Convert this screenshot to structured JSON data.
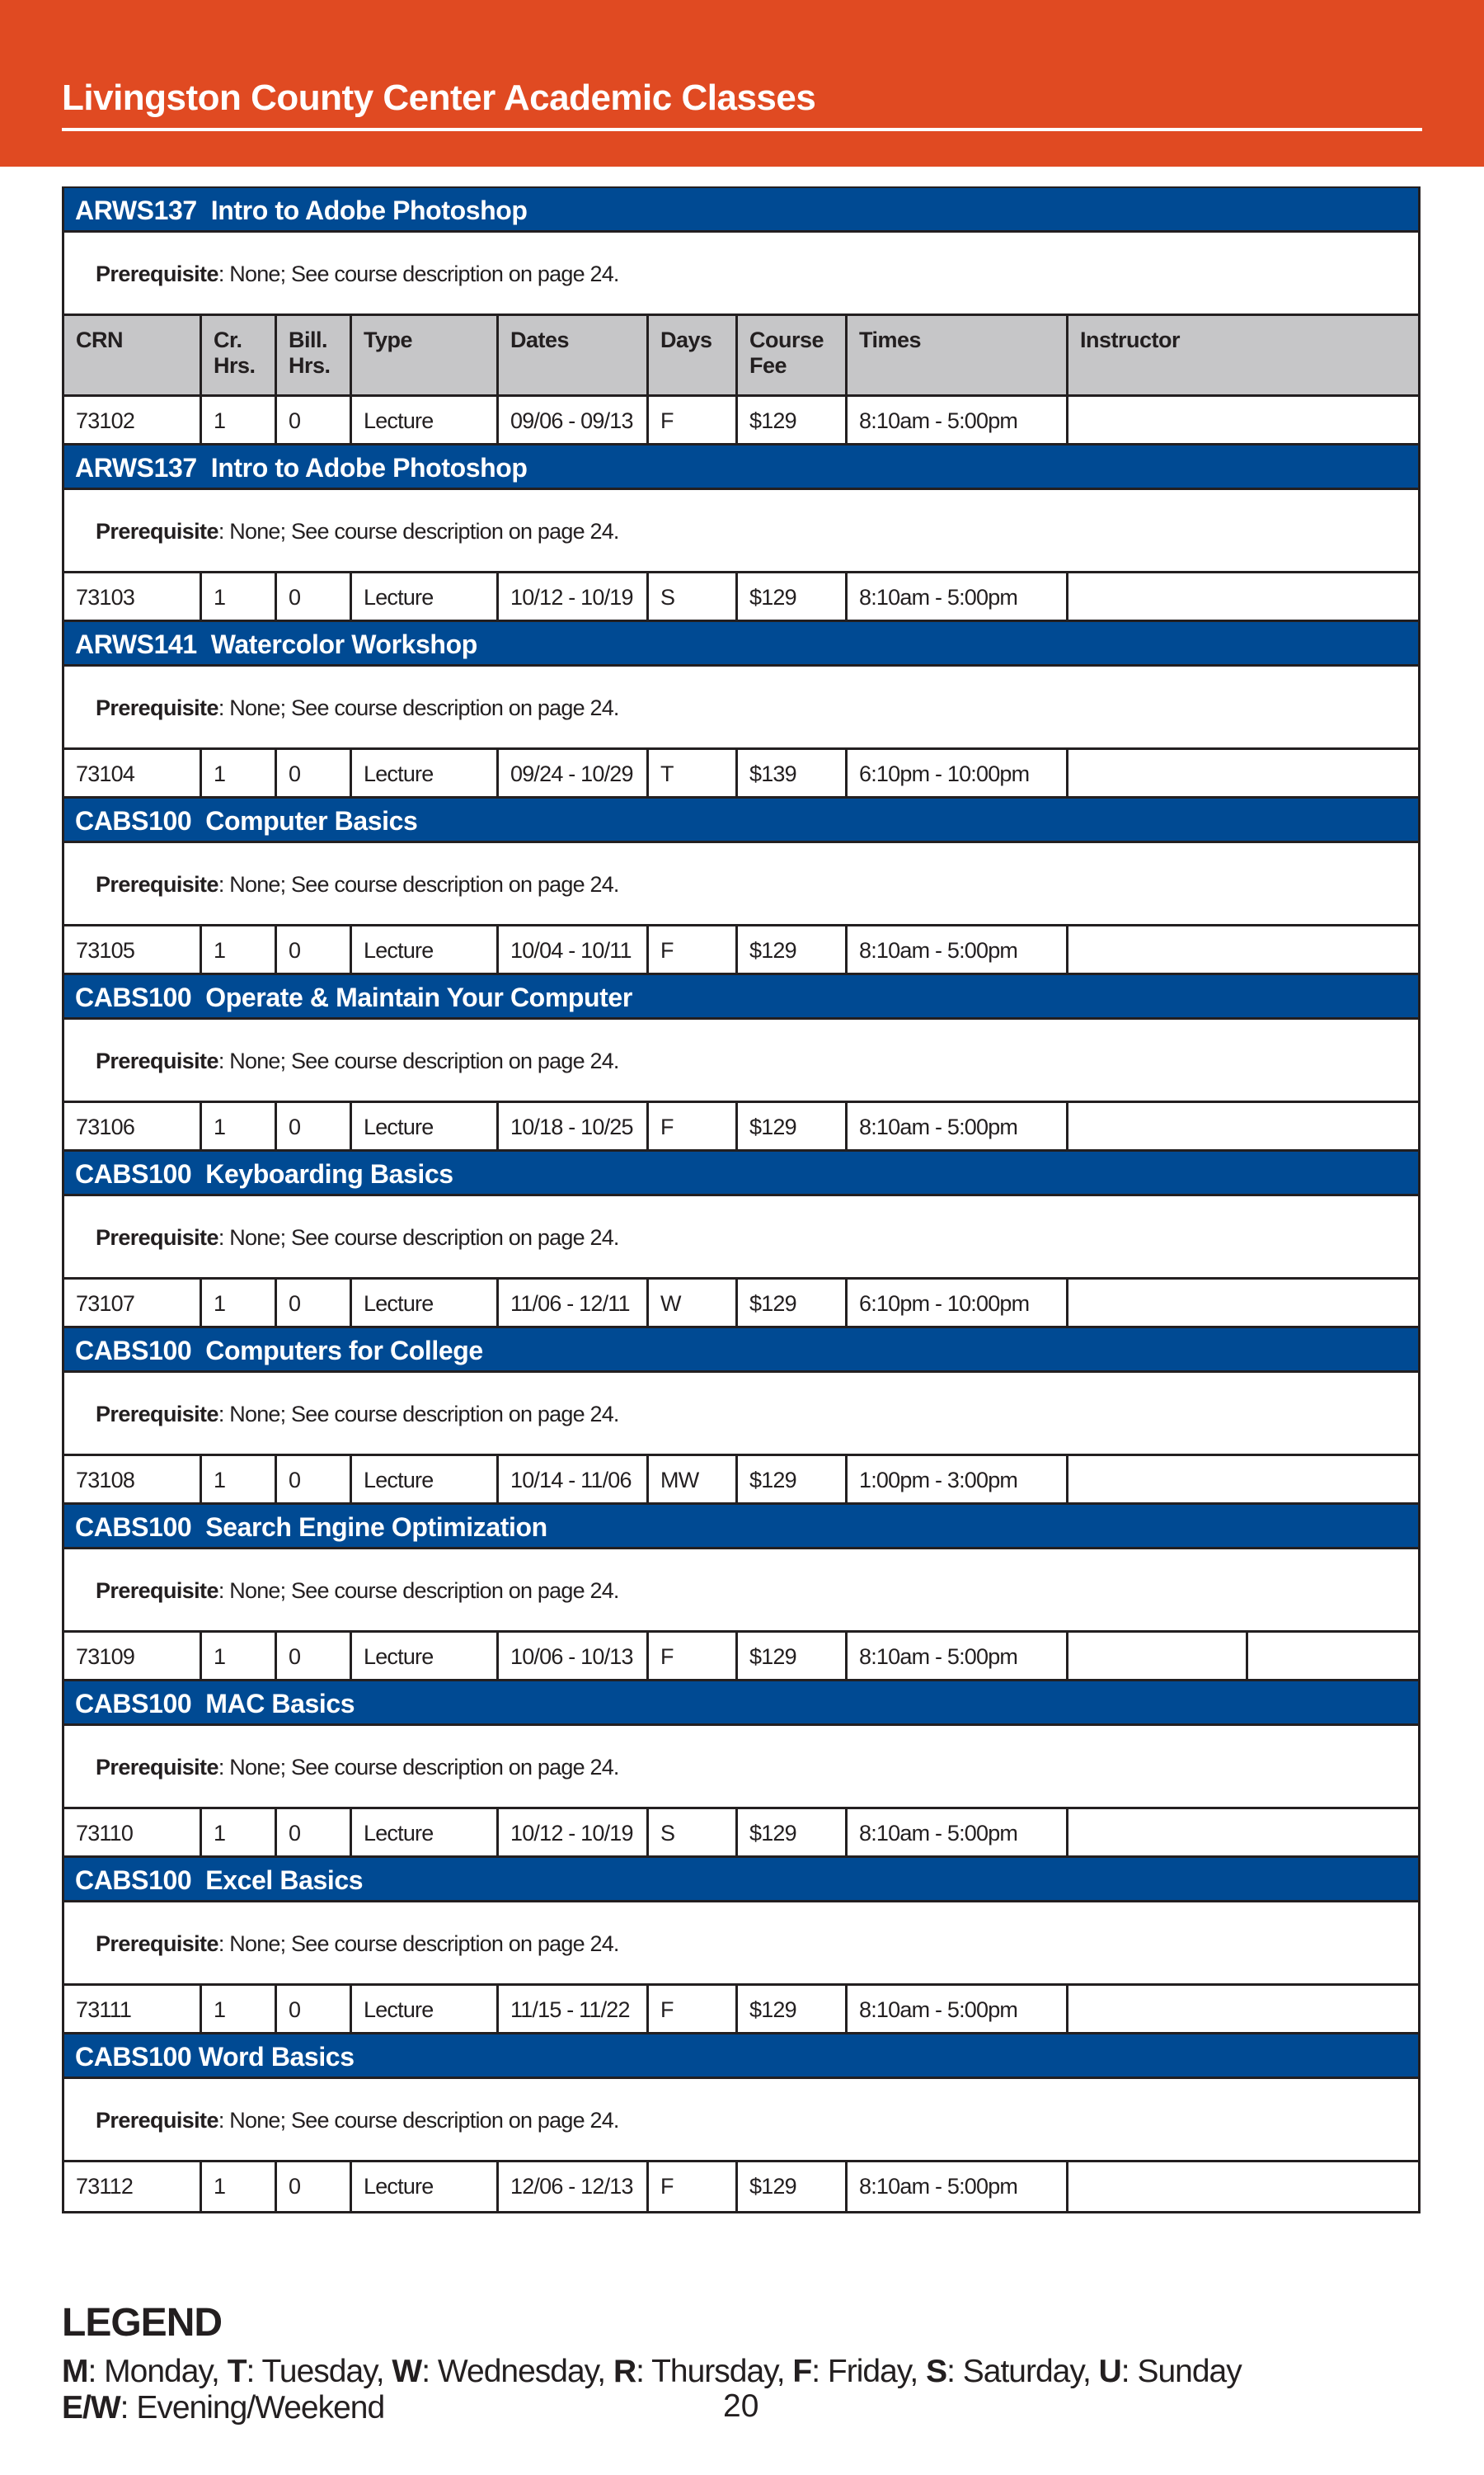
{
  "header": {
    "title": "Livingston County Center Academic Classes"
  },
  "colors": {
    "banner": "#e04a22",
    "course_header": "#004a93",
    "column_header": "#c6c6c8"
  },
  "columns": [
    "CRN",
    "Cr.\nHrs.",
    "Bill.\nHrs.",
    "Type",
    "Dates",
    "Days",
    "Course\nFee",
    "Times",
    "Instructor"
  ],
  "prereq_label": "Prerequisite",
  "courses": [
    {
      "title": "ARWS137  Intro to Adobe Photoshop",
      "prereq": ": None; See course description on page 24.",
      "row": [
        "73102",
        "1",
        "0",
        "Lecture",
        "09/06 - 09/13",
        "F",
        "$129",
        "8:10am - 5:00pm",
        ""
      ]
    },
    {
      "title": "ARWS137  Intro to Adobe Photoshop",
      "prereq": ": None; See course description on page 24.",
      "row": [
        "73103",
        "1",
        "0",
        "Lecture",
        "10/12 - 10/19",
        "S",
        "$129",
        "8:10am - 5:00pm",
        ""
      ]
    },
    {
      "title": "ARWS141  Watercolor Workshop",
      "prereq": ": None; See course description on page 24.",
      "row": [
        "73104",
        "1",
        "0",
        "Lecture",
        "09/24 - 10/29",
        "T",
        "$139",
        "6:10pm - 10:00pm",
        ""
      ]
    },
    {
      "title": "CABS100  Computer Basics",
      "prereq": ": None; See course description on page 24.",
      "row": [
        "73105",
        "1",
        "0",
        "Lecture",
        "10/04 - 10/11",
        "F",
        "$129",
        "8:10am - 5:00pm",
        ""
      ]
    },
    {
      "title": "CABS100  Operate & Maintain Your Computer",
      "prereq": ": None; See course description on page 24.",
      "row": [
        "73106",
        "1",
        "0",
        "Lecture",
        "10/18 - 10/25",
        "F",
        "$129",
        "8:10am - 5:00pm",
        ""
      ]
    },
    {
      "title": "CABS100  Keyboarding Basics",
      "prereq": ": None; See course description on page 24.",
      "row": [
        "73107",
        "1",
        "0",
        "Lecture",
        "11/06 - 12/11",
        "W",
        "$129",
        "6:10pm - 10:00pm",
        ""
      ]
    },
    {
      "title": "CABS100  Computers for College",
      "prereq": ": None; See course description on page 24.",
      "row": [
        "73108",
        "1",
        "0",
        "Lecture",
        "10/14 - 11/06",
        "MW",
        "$129",
        "1:00pm - 3:00pm",
        ""
      ]
    },
    {
      "title": "CABS100  Search Engine Optimization",
      "prereq": ": None; See course description on page 24.",
      "row": [
        "73109",
        "1",
        "0",
        "Lecture",
        "10/06 - 10/13",
        "F",
        "$129",
        "8:10am - 5:00pm",
        ""
      ]
    },
    {
      "title": "CABS100  MAC Basics",
      "prereq": ": None; See course description on page 24.",
      "row": [
        "73110",
        "1",
        "0",
        "Lecture",
        "10/12 - 10/19",
        "S",
        "$129",
        "8:10am - 5:00pm",
        ""
      ]
    },
    {
      "title": "CABS100  Excel Basics",
      "prereq": ": None; See course description on page 24.",
      "row": [
        "73111",
        "1",
        "0",
        "Lecture",
        "11/15 - 11/22",
        "F",
        "$129",
        "8:10am - 5:00pm",
        ""
      ]
    },
    {
      "title": "CABS100 Word Basics",
      "prereq": ": None; See course description on page 24.",
      "row": [
        "73112",
        "1",
        "0",
        "Lecture",
        "12/06 - 12/13",
        "F",
        "$129",
        "8:10am - 5:00pm",
        ""
      ]
    }
  ],
  "legend": {
    "title": "LEGEND",
    "days": [
      {
        "key": "M",
        "text": ": Monday, "
      },
      {
        "key": "T",
        "text": ": Tuesday, "
      },
      {
        "key": "W",
        "text": ": Wednesday, "
      },
      {
        "key": "R",
        "text": ": Thursday, "
      },
      {
        "key": "F",
        "text": ": Friday, "
      },
      {
        "key": "S",
        "text": ": Saturday, "
      },
      {
        "key": "U",
        "text": ": Sunday"
      }
    ],
    "ew": {
      "key": "E/W",
      "text": ": Evening/Weekend"
    }
  },
  "page_number": "20"
}
